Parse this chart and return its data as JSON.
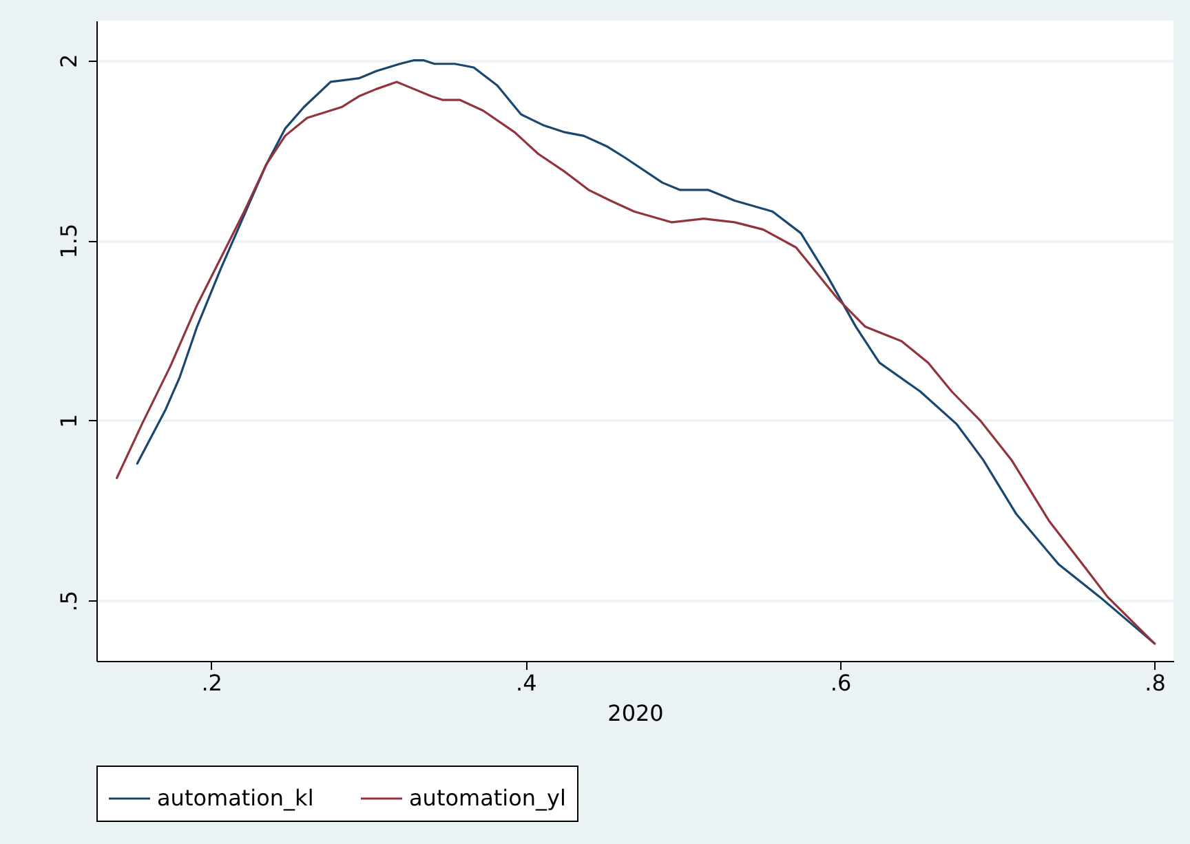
{
  "chart_data": {
    "type": "line",
    "xlabel": "2020",
    "xlim": [
      0.127,
      0.812
    ],
    "xticks": [
      {
        "value": 0.2,
        "label": ".2"
      },
      {
        "value": 0.4,
        "label": ".4"
      },
      {
        "value": 0.6,
        "label": ".6"
      },
      {
        "value": 0.8,
        "label": ".8"
      }
    ],
    "ylim": [
      0.332,
      2.11
    ],
    "yticks": [
      {
        "value": 0.5,
        "label": ".5"
      },
      1,
      1.5,
      2
    ],
    "grid": "y",
    "legend": "bottom",
    "line_style": "solid",
    "series": [
      {
        "name": "automation_kl",
        "color": "#1a476f",
        "x": [
          0.153,
          0.171,
          0.18,
          0.191,
          0.206,
          0.221,
          0.235,
          0.247,
          0.259,
          0.276,
          0.294,
          0.305,
          0.32,
          0.329,
          0.335,
          0.342,
          0.355,
          0.367,
          0.382,
          0.397,
          0.411,
          0.425,
          0.437,
          0.452,
          0.463,
          0.487,
          0.498,
          0.516,
          0.533,
          0.557,
          0.575,
          0.592,
          0.61,
          0.625,
          0.651,
          0.674,
          0.691,
          0.712,
          0.739,
          0.765,
          0.8
        ],
        "values": [
          0.88,
          1.03,
          1.12,
          1.26,
          1.42,
          1.57,
          1.71,
          1.81,
          1.87,
          1.94,
          1.95,
          1.97,
          1.99,
          2.0,
          2.0,
          1.99,
          1.99,
          1.98,
          1.93,
          1.85,
          1.82,
          1.8,
          1.79,
          1.76,
          1.73,
          1.66,
          1.64,
          1.64,
          1.61,
          1.58,
          1.52,
          1.4,
          1.26,
          1.16,
          1.08,
          0.99,
          0.89,
          0.74,
          0.6,
          0.51,
          0.38
        ]
      },
      {
        "name": "automation_yl",
        "color": "#90353b",
        "x": [
          0.14,
          0.156,
          0.174,
          0.191,
          0.206,
          0.221,
          0.235,
          0.247,
          0.261,
          0.283,
          0.294,
          0.305,
          0.318,
          0.329,
          0.34,
          0.347,
          0.358,
          0.373,
          0.393,
          0.408,
          0.425,
          0.44,
          0.454,
          0.469,
          0.493,
          0.513,
          0.533,
          0.551,
          0.572,
          0.598,
          0.616,
          0.639,
          0.656,
          0.671,
          0.689,
          0.709,
          0.733,
          0.756,
          0.77,
          0.8
        ],
        "values": [
          0.84,
          0.99,
          1.15,
          1.32,
          1.45,
          1.58,
          1.71,
          1.79,
          1.84,
          1.87,
          1.9,
          1.92,
          1.94,
          1.92,
          1.9,
          1.89,
          1.89,
          1.86,
          1.8,
          1.74,
          1.69,
          1.64,
          1.61,
          1.58,
          1.55,
          1.56,
          1.55,
          1.53,
          1.48,
          1.34,
          1.26,
          1.22,
          1.16,
          1.08,
          1.0,
          0.89,
          0.72,
          0.59,
          0.51,
          0.38
        ]
      }
    ]
  }
}
